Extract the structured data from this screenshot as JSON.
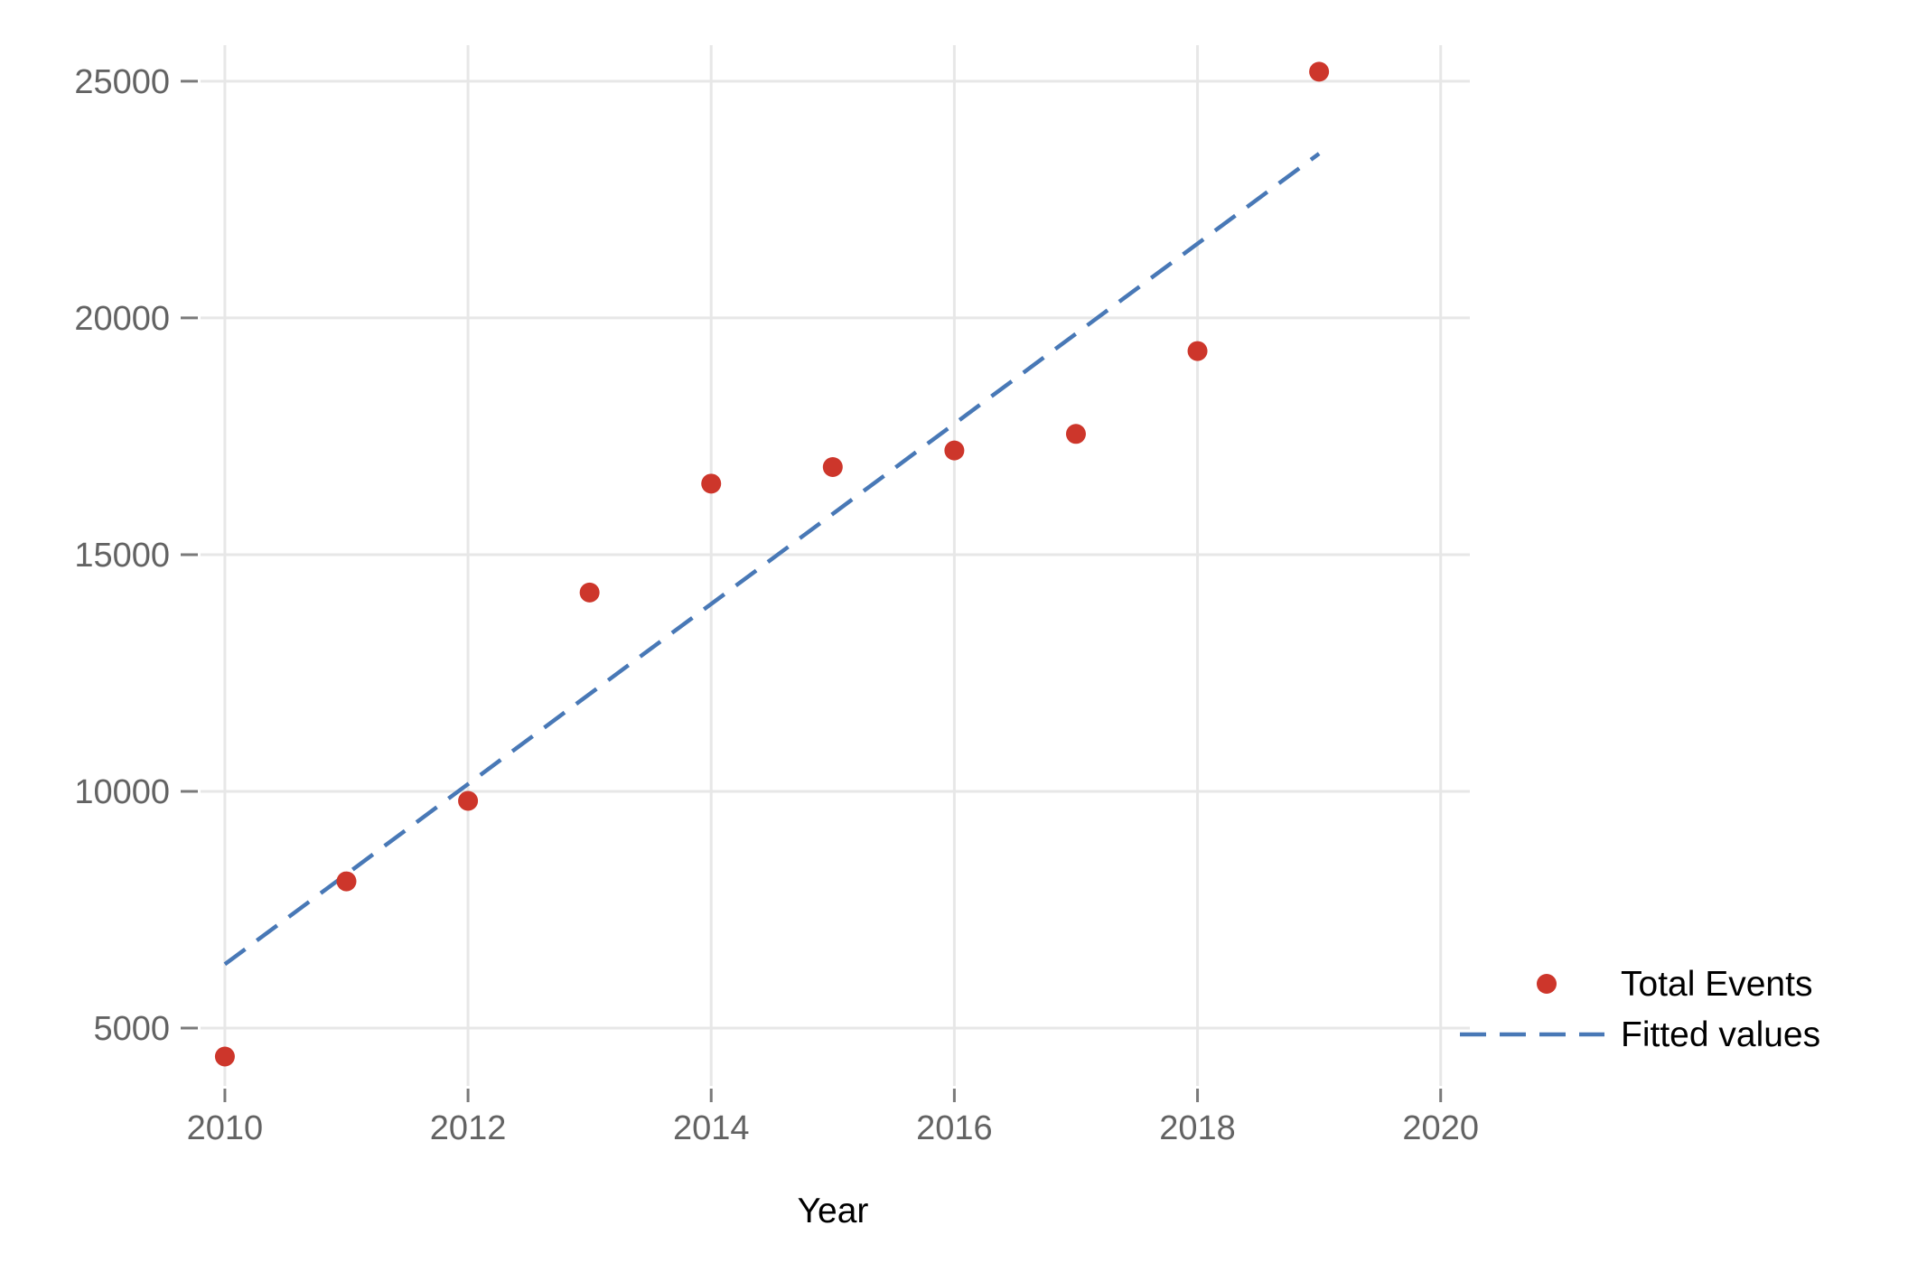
{
  "chart_data": {
    "type": "scatter",
    "title": "",
    "xlabel": "Year",
    "ylabel": "",
    "x": [
      2010,
      2011,
      2012,
      2013,
      2014,
      2015,
      2016,
      2017,
      2018,
      2019
    ],
    "series": [
      {
        "name": "Total Events",
        "kind": "scatter",
        "color": "#cd362b",
        "values": [
          4400,
          8100,
          9800,
          14200,
          16500,
          16850,
          17200,
          17550,
          19300,
          25200
        ]
      },
      {
        "name": "Fitted values",
        "kind": "dashed-line",
        "color": "#4878b6",
        "x": [
          2010,
          2019
        ],
        "values": [
          6350,
          23470
        ]
      }
    ],
    "xticks": [
      2010,
      2012,
      2014,
      2016,
      2018,
      2020
    ],
    "yticks": [
      5000,
      10000,
      15000,
      20000,
      25000
    ],
    "xlim": [
      2009.8,
      2020.24
    ],
    "ylim": [
      3780,
      25760
    ],
    "grid": true,
    "legend_position": "outside-bottom-right",
    "legend": [
      {
        "label": "Total Events",
        "marker": "dot",
        "color": "#cd362b"
      },
      {
        "label": "Fitted values",
        "marker": "dashed-line",
        "color": "#4878b6"
      }
    ]
  },
  "style": {
    "background": "#ffffff",
    "grid_color": "#e7e7e7",
    "tick_color": "#7a7a7a",
    "tick_label_color": "#636363",
    "text_color": "#000000"
  }
}
